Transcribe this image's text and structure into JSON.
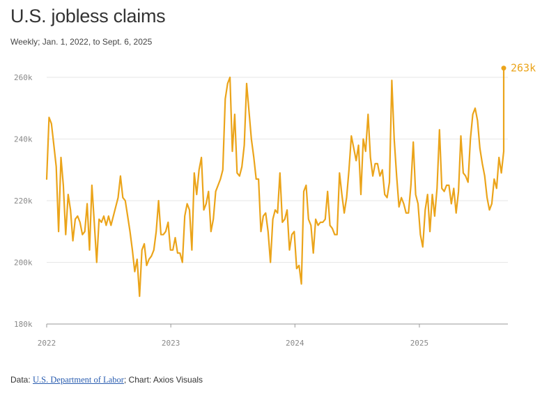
{
  "header": {
    "title": "U.S. jobless claims",
    "subtitle": "Weekly; Jan. 1, 2022, to Sept. 6, 2025"
  },
  "footer": {
    "prefix": "Data: ",
    "source_link": "U.S. Department of Labor",
    "suffix": "; Chart: Axios Visuals"
  },
  "colors": {
    "line": "#eba41a",
    "grid": "#e6e6e6",
    "axis": "#999999"
  },
  "chart_data": {
    "type": "line",
    "title": "U.S. jobless claims",
    "subtitle": "Weekly; Jan. 1, 2022, to Sept. 6, 2025",
    "xlim": [
      "2022-01-01",
      "2025-09-06"
    ],
    "ylim": [
      180000,
      265000
    ],
    "yticks": [
      180000,
      200000,
      220000,
      240000,
      260000
    ],
    "ytick_labels": [
      "180k",
      "200k",
      "220k",
      "240k",
      "260k"
    ],
    "xticks": [
      "2022",
      "2023",
      "2024",
      "2025"
    ],
    "grid": "horizontal",
    "end_label": "263k",
    "series": [
      {
        "points": [
          [
            "2022-01-01",
            227000
          ],
          [
            "2022-01-08",
            247000
          ],
          [
            "2022-01-15",
            245000
          ],
          [
            "2022-01-22",
            238000
          ],
          [
            "2022-01-29",
            231000
          ],
          [
            "2022-02-05",
            210000
          ],
          [
            "2022-02-12",
            234000
          ],
          [
            "2022-02-19",
            225000
          ],
          [
            "2022-02-26",
            209000
          ],
          [
            "2022-03-05",
            222000
          ],
          [
            "2022-03-12",
            217000
          ],
          [
            "2022-03-19",
            207000
          ],
          [
            "2022-03-26",
            214000
          ],
          [
            "2022-04-02",
            215000
          ],
          [
            "2022-04-09",
            213000
          ],
          [
            "2022-04-16",
            209000
          ],
          [
            "2022-04-23",
            210000
          ],
          [
            "2022-04-30",
            219000
          ],
          [
            "2022-05-07",
            204000
          ],
          [
            "2022-05-14",
            225000
          ],
          [
            "2022-05-21",
            213000
          ],
          [
            "2022-05-28",
            200000
          ],
          [
            "2022-06-04",
            214000
          ],
          [
            "2022-06-11",
            213000
          ],
          [
            "2022-06-18",
            215000
          ],
          [
            "2022-06-25",
            212000
          ],
          [
            "2022-07-02",
            215000
          ],
          [
            "2022-07-09",
            212000
          ],
          [
            "2022-07-16",
            215000
          ],
          [
            "2022-07-23",
            218000
          ],
          [
            "2022-07-30",
            221000
          ],
          [
            "2022-08-06",
            228000
          ],
          [
            "2022-08-13",
            221000
          ],
          [
            "2022-08-20",
            220000
          ],
          [
            "2022-08-27",
            215000
          ],
          [
            "2022-09-03",
            210000
          ],
          [
            "2022-09-10",
            204000
          ],
          [
            "2022-09-17",
            197000
          ],
          [
            "2022-09-24",
            201000
          ],
          [
            "2022-10-01",
            189000
          ],
          [
            "2022-10-08",
            204000
          ],
          [
            "2022-10-15",
            206000
          ],
          [
            "2022-10-22",
            199000
          ],
          [
            "2022-10-29",
            201000
          ],
          [
            "2022-11-05",
            202000
          ],
          [
            "2022-11-12",
            204000
          ],
          [
            "2022-11-19",
            210000
          ],
          [
            "2022-11-26",
            220000
          ],
          [
            "2022-12-03",
            209000
          ],
          [
            "2022-12-10",
            209000
          ],
          [
            "2022-12-17",
            210000
          ],
          [
            "2022-12-24",
            213000
          ],
          [
            "2022-12-31",
            204000
          ],
          [
            "2023-01-07",
            204000
          ],
          [
            "2023-01-14",
            208000
          ],
          [
            "2023-01-21",
            203000
          ],
          [
            "2023-01-28",
            203000
          ],
          [
            "2023-02-04",
            200000
          ],
          [
            "2023-02-11",
            215000
          ],
          [
            "2023-02-18",
            219000
          ],
          [
            "2023-02-25",
            217000
          ],
          [
            "2023-03-04",
            204000
          ],
          [
            "2023-03-11",
            229000
          ],
          [
            "2023-03-18",
            222000
          ],
          [
            "2023-03-25",
            230000
          ],
          [
            "2023-04-01",
            234000
          ],
          [
            "2023-04-08",
            217000
          ],
          [
            "2023-04-15",
            219000
          ],
          [
            "2023-04-22",
            223000
          ],
          [
            "2023-04-29",
            210000
          ],
          [
            "2023-05-06",
            214000
          ],
          [
            "2023-05-13",
            223000
          ],
          [
            "2023-05-20",
            225000
          ],
          [
            "2023-05-27",
            227000
          ],
          [
            "2023-06-03",
            230000
          ],
          [
            "2023-06-10",
            253000
          ],
          [
            "2023-06-17",
            258000
          ],
          [
            "2023-06-24",
            260000
          ],
          [
            "2023-07-01",
            236000
          ],
          [
            "2023-07-08",
            248000
          ],
          [
            "2023-07-15",
            229000
          ],
          [
            "2023-07-22",
            228000
          ],
          [
            "2023-07-29",
            231000
          ],
          [
            "2023-08-05",
            238000
          ],
          [
            "2023-08-12",
            258000
          ],
          [
            "2023-08-19",
            249000
          ],
          [
            "2023-08-26",
            240000
          ],
          [
            "2023-09-02",
            234000
          ],
          [
            "2023-09-09",
            227000
          ],
          [
            "2023-09-16",
            227000
          ],
          [
            "2023-09-23",
            210000
          ],
          [
            "2023-09-30",
            215000
          ],
          [
            "2023-10-07",
            216000
          ],
          [
            "2023-10-14",
            210000
          ],
          [
            "2023-10-21",
            200000
          ],
          [
            "2023-10-28",
            214000
          ],
          [
            "2023-11-04",
            217000
          ],
          [
            "2023-11-11",
            216000
          ],
          [
            "2023-11-18",
            229000
          ],
          [
            "2023-11-25",
            213000
          ],
          [
            "2023-12-02",
            214000
          ],
          [
            "2023-12-09",
            217000
          ],
          [
            "2023-12-16",
            204000
          ],
          [
            "2023-12-23",
            209000
          ],
          [
            "2023-12-30",
            210000
          ],
          [
            "2024-01-06",
            198000
          ],
          [
            "2024-01-13",
            199000
          ],
          [
            "2024-01-20",
            193000
          ],
          [
            "2024-01-27",
            223000
          ],
          [
            "2024-02-03",
            225000
          ],
          [
            "2024-02-10",
            214000
          ],
          [
            "2024-02-17",
            212000
          ],
          [
            "2024-02-24",
            203000
          ],
          [
            "2024-03-02",
            214000
          ],
          [
            "2024-03-09",
            212000
          ],
          [
            "2024-03-16",
            213000
          ],
          [
            "2024-03-23",
            213000
          ],
          [
            "2024-03-30",
            214000
          ],
          [
            "2024-04-06",
            223000
          ],
          [
            "2024-04-13",
            212000
          ],
          [
            "2024-04-20",
            211000
          ],
          [
            "2024-04-27",
            209000
          ],
          [
            "2024-05-04",
            209000
          ],
          [
            "2024-05-11",
            229000
          ],
          [
            "2024-05-18",
            222000
          ],
          [
            "2024-05-25",
            216000
          ],
          [
            "2024-06-01",
            221000
          ],
          [
            "2024-06-08",
            230000
          ],
          [
            "2024-06-15",
            241000
          ],
          [
            "2024-06-22",
            237000
          ],
          [
            "2024-06-29",
            233000
          ],
          [
            "2024-07-06",
            238000
          ],
          [
            "2024-07-13",
            222000
          ],
          [
            "2024-07-20",
            240000
          ],
          [
            "2024-07-27",
            236000
          ],
          [
            "2024-08-03",
            248000
          ],
          [
            "2024-08-10",
            234000
          ],
          [
            "2024-08-17",
            228000
          ],
          [
            "2024-08-24",
            232000
          ],
          [
            "2024-08-31",
            232000
          ],
          [
            "2024-09-07",
            228000
          ],
          [
            "2024-09-14",
            230000
          ],
          [
            "2024-09-21",
            222000
          ],
          [
            "2024-09-28",
            221000
          ],
          [
            "2024-10-05",
            226000
          ],
          [
            "2024-10-12",
            259000
          ],
          [
            "2024-10-19",
            240000
          ],
          [
            "2024-10-26",
            228000
          ],
          [
            "2024-11-02",
            218000
          ],
          [
            "2024-11-09",
            221000
          ],
          [
            "2024-11-16",
            219000
          ],
          [
            "2024-11-23",
            216000
          ],
          [
            "2024-11-30",
            216000
          ],
          [
            "2024-12-07",
            225000
          ],
          [
            "2024-12-14",
            239000
          ],
          [
            "2024-12-21",
            222000
          ],
          [
            "2024-12-28",
            219000
          ],
          [
            "2025-01-04",
            209000
          ],
          [
            "2025-01-11",
            205000
          ],
          [
            "2025-01-18",
            217000
          ],
          [
            "2025-01-25",
            222000
          ],
          [
            "2025-02-01",
            210000
          ],
          [
            "2025-02-08",
            222000
          ],
          [
            "2025-02-15",
            215000
          ],
          [
            "2025-02-22",
            224000
          ],
          [
            "2025-03-01",
            243000
          ],
          [
            "2025-03-08",
            224000
          ],
          [
            "2025-03-15",
            223000
          ],
          [
            "2025-03-22",
            225000
          ],
          [
            "2025-03-29",
            225000
          ],
          [
            "2025-04-05",
            219000
          ],
          [
            "2025-04-12",
            224000
          ],
          [
            "2025-04-19",
            216000
          ],
          [
            "2025-04-26",
            223000
          ],
          [
            "2025-05-03",
            241000
          ],
          [
            "2025-05-10",
            229000
          ],
          [
            "2025-05-17",
            228000
          ],
          [
            "2025-05-24",
            226000
          ],
          [
            "2025-05-31",
            240000
          ],
          [
            "2025-06-07",
            248000
          ],
          [
            "2025-06-14",
            250000
          ],
          [
            "2025-06-21",
            246000
          ],
          [
            "2025-06-28",
            237000
          ],
          [
            "2025-07-05",
            232000
          ],
          [
            "2025-07-12",
            228000
          ],
          [
            "2025-07-19",
            221000
          ],
          [
            "2025-07-26",
            217000
          ],
          [
            "2025-08-02",
            219000
          ],
          [
            "2025-08-09",
            227000
          ],
          [
            "2025-08-16",
            224000
          ],
          [
            "2025-08-23",
            234000
          ],
          [
            "2025-08-30",
            229000
          ],
          [
            "2025-09-06",
            236000
          ],
          [
            "2025-09-06",
            263000
          ]
        ]
      }
    ]
  }
}
